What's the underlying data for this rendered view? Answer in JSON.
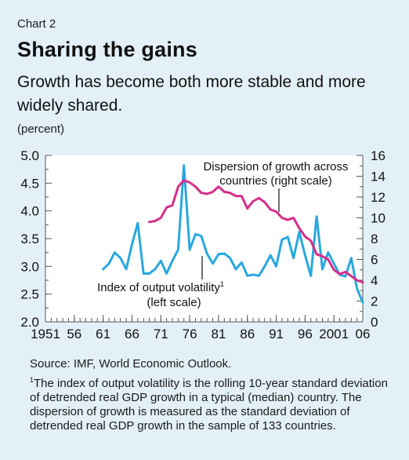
{
  "colors": {
    "background": "#e3f0f8",
    "plot_area": "#ffffff",
    "volatility_line": "#29a8df",
    "dispersion_line": "#d62e8a",
    "axis": "#555555"
  },
  "header": {
    "chart_number": "Chart 2",
    "title": "Sharing the gains",
    "subtitle": "Growth has become both more stable and more widely shared.",
    "unit_label": "(percent)"
  },
  "annotations": {
    "dispersion_line1": "Dispersion of growth across",
    "dispersion_line2": "countries (right scale)",
    "volatility_line1": "Index of output volatility",
    "volatility_sup": "1",
    "volatility_line2": "(left scale)"
  },
  "footer": {
    "source": "Source: IMF, World Economic Outlook.",
    "footnote_marker": "1",
    "footnote": "The index of output volatility is the rolling 10-year standard deviation of detrended real GDP growth in a typical (median) country. The dispersion of growth is measured as the standard deviation of detrended real GDP growth in the sample of 133 countries."
  },
  "chart_data": {
    "type": "line",
    "title": "Sharing the gains",
    "subtitle": "Growth has become both more stable and more widely shared.",
    "xlabel": "",
    "ylabel_left": "(percent)",
    "xlim": [
      1951,
      2006
    ],
    "ylim_left": [
      2.0,
      5.0
    ],
    "ylim_right": [
      0,
      16
    ],
    "x_tick_labels": [
      "1951",
      "56",
      "61",
      "66",
      "71",
      "76",
      "81",
      "86",
      "91",
      "96",
      "2001",
      "06"
    ],
    "x_tick_values": [
      1951,
      1956,
      1961,
      1966,
      1971,
      1976,
      1981,
      1986,
      1991,
      1996,
      2001,
      2006
    ],
    "y_left_ticks": [
      "2.0",
      "2.5",
      "3.0",
      "3.5",
      "4.0",
      "4.5",
      "5.0"
    ],
    "y_right_ticks": [
      "0",
      "2",
      "4",
      "6",
      "8",
      "10",
      "12",
      "14",
      "16"
    ],
    "grid": false,
    "series": [
      {
        "name": "Index of output volatility (left scale)",
        "axis": "left",
        "x": [
          1961,
          1962,
          1963,
          1964,
          1965,
          1966,
          1967,
          1968,
          1969,
          1970,
          1971,
          1972,
          1973,
          1974,
          1975,
          1976,
          1977,
          1978,
          1979,
          1980,
          1981,
          1982,
          1983,
          1984,
          1985,
          1986,
          1987,
          1988,
          1989,
          1990,
          1991,
          1992,
          1993,
          1994,
          1995,
          1996,
          1997,
          1998,
          1999,
          2000,
          2001,
          2002,
          2003,
          2004,
          2005,
          2006
        ],
        "values": [
          2.95,
          3.05,
          3.25,
          3.15,
          2.95,
          3.4,
          3.78,
          2.87,
          2.87,
          2.95,
          3.1,
          2.87,
          3.1,
          3.3,
          4.82,
          3.3,
          3.58,
          3.55,
          3.23,
          3.05,
          3.22,
          3.23,
          3.15,
          2.95,
          3.07,
          2.83,
          2.85,
          2.83,
          3.0,
          3.2,
          3.0,
          3.48,
          3.53,
          3.15,
          3.62,
          3.2,
          2.83,
          3.9,
          2.95,
          3.25,
          3.05,
          2.85,
          2.82,
          3.15,
          2.6,
          2.35
        ]
      },
      {
        "name": "Dispersion of growth across countries (right scale)",
        "axis": "right",
        "x": [
          1969,
          1970,
          1971,
          1972,
          1973,
          1974,
          1975,
          1976,
          1977,
          1978,
          1979,
          1980,
          1981,
          1982,
          1983,
          1984,
          1985,
          1986,
          1987,
          1988,
          1989,
          1990,
          1991,
          1992,
          1993,
          1994,
          1995,
          1996,
          1997,
          1998,
          1999,
          2000,
          2001,
          2002,
          2003,
          2004,
          2005,
          2006
        ],
        "values": [
          9.6,
          9.7,
          10.0,
          11.0,
          11.2,
          13.0,
          13.6,
          13.4,
          13.0,
          12.4,
          12.3,
          12.5,
          13.0,
          12.5,
          12.4,
          12.1,
          12.1,
          10.9,
          11.6,
          11.9,
          11.5,
          10.8,
          10.6,
          10.0,
          9.8,
          10.0,
          9.0,
          8.2,
          7.8,
          6.5,
          6.3,
          6.0,
          5.0,
          4.6,
          4.8,
          4.4,
          4.0,
          3.8
        ]
      }
    ]
  }
}
